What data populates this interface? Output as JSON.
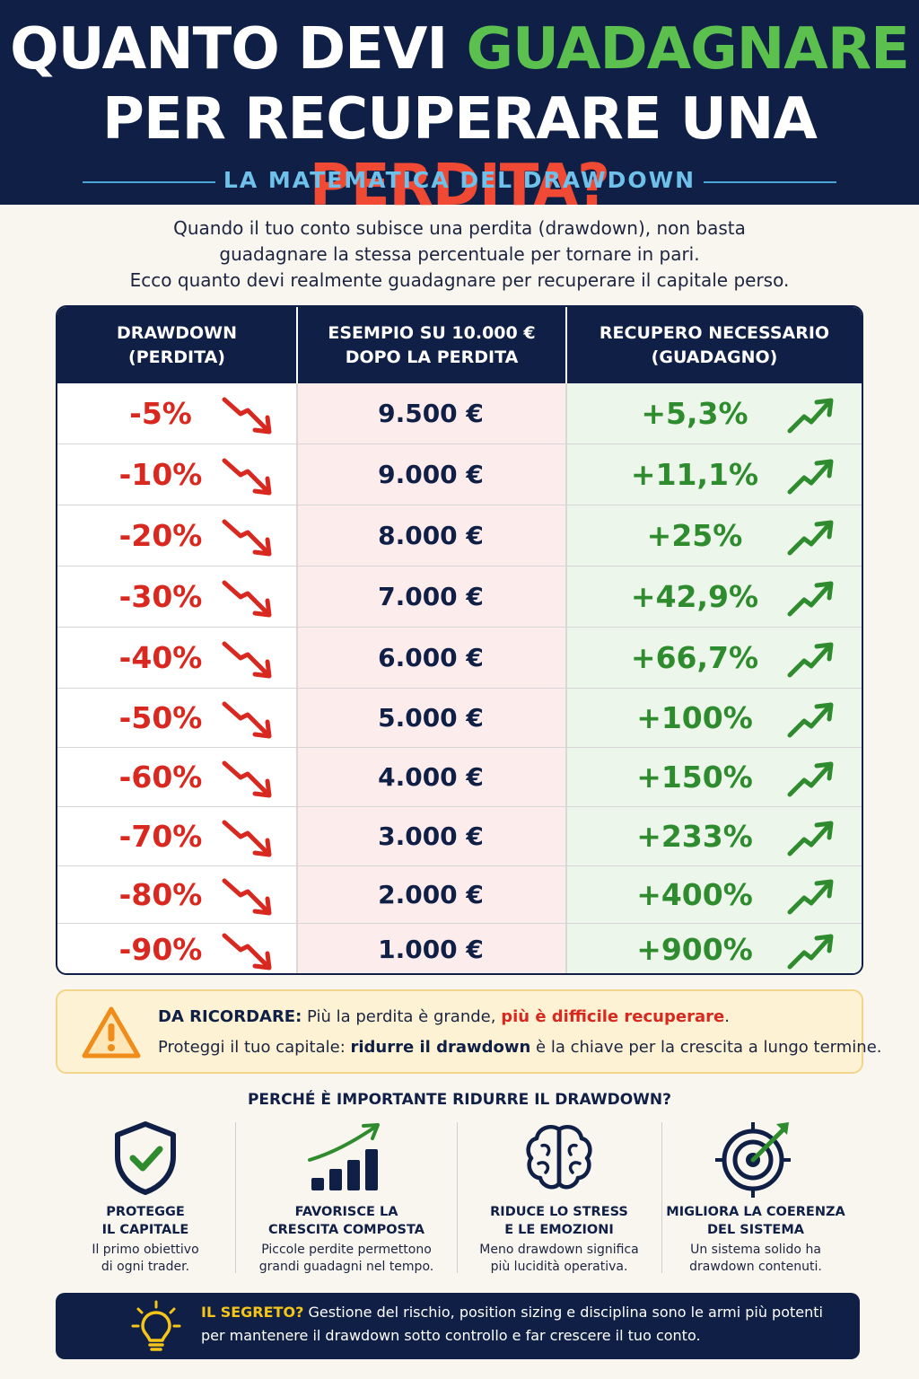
{
  "header": {
    "title_part1": "QUANTO DEVI ",
    "title_highlight1": "GUADAGNARE",
    "title_part2": "PER RECUPERARE UNA ",
    "title_highlight2": "PERDITA?",
    "subtitle": "LA MATEMATICA DEL DRAWDOWN",
    "highlight_green": "#5cc04f",
    "highlight_red": "#f04a35",
    "background": "#0f1f45"
  },
  "intro": {
    "line1": "Quando il tuo conto subisce una perdita (drawdown), non basta",
    "line2": "guadagnare la stessa percentuale per tornare in pari.",
    "line3": "Ecco quanto devi realmente guadagnare per recuperare il capitale perso."
  },
  "table": {
    "headers": {
      "drawdown_1": "DRAWDOWN",
      "drawdown_2": "(PERDITA)",
      "example_1": "ESEMPIO SU 10.000 €",
      "example_2": "DOPO LA PERDITA",
      "recovery_1": "RECUPERO NECESSARIO",
      "recovery_2": "(GUADAGNO)"
    },
    "icons": {
      "loss": "trend-down-arrow-icon",
      "gain": "trend-up-arrow-icon"
    },
    "rows": [
      {
        "drawdown": "-5%",
        "example": "9.500 €",
        "recovery": "+5,3%"
      },
      {
        "drawdown": "-10%",
        "example": "9.000 €",
        "recovery": "+11,1%"
      },
      {
        "drawdown": "-20%",
        "example": "8.000 €",
        "recovery": "+25%"
      },
      {
        "drawdown": "-30%",
        "example": "7.000 €",
        "recovery": "+42,9%"
      },
      {
        "drawdown": "-40%",
        "example": "6.000 €",
        "recovery": "+66,7%"
      },
      {
        "drawdown": "-50%",
        "example": "5.000 €",
        "recovery": "+100%"
      },
      {
        "drawdown": "-60%",
        "example": "4.000 €",
        "recovery": "+150%"
      },
      {
        "drawdown": "-70%",
        "example": "3.000 €",
        "recovery": "+233%"
      },
      {
        "drawdown": "-80%",
        "example": "2.000 €",
        "recovery": "+400%"
      },
      {
        "drawdown": "-90%",
        "example": "1.000 €",
        "recovery": "+900%"
      }
    ]
  },
  "remember": {
    "icon": "warning-icon",
    "label": "DA RICORDARE:",
    "line1_text": " Più la perdita è grande, ",
    "line1_highlight": "più è difficile recuperare",
    "line1_end": ".",
    "line2_start": "Proteggi il tuo capitale: ",
    "line2_bold": "ridurre il drawdown",
    "line2_end": " è la chiave per la crescita a lungo termine."
  },
  "why": {
    "title": "PERCHÉ È IMPORTANTE RIDURRE IL DRAWDOWN?",
    "items": [
      {
        "icon": "shield-check-icon",
        "head1": "PROTEGGE",
        "head2": "IL CAPITALE",
        "desc1": "Il primo obiettivo",
        "desc2": "di ogni trader."
      },
      {
        "icon": "growth-chart-icon",
        "head1": "FAVORISCE LA",
        "head2": "CRESCITA COMPOSTA",
        "desc1": "Piccole perdite permettono",
        "desc2": "grandi guadagni nel tempo."
      },
      {
        "icon": "brain-icon",
        "head1": "RIDUCE LO STRESS",
        "head2": "E LE EMOZIONI",
        "desc1": "Meno drawdown significa",
        "desc2": "più lucidità operativa."
      },
      {
        "icon": "target-icon",
        "head1": "MIGLIORA LA COERENZA",
        "head2": "DEL SISTEMA",
        "desc1": "Un sistema solido ha",
        "desc2": "drawdown contenuti."
      }
    ]
  },
  "secret": {
    "icon": "lightbulb-icon",
    "label": "IL SEGRETO?",
    "line1_text": " Gestione del rischio, position sizing e disciplina sono le armi più potenti",
    "line2": "per mantenere il drawdown sotto controllo e far crescere il tuo conto."
  }
}
